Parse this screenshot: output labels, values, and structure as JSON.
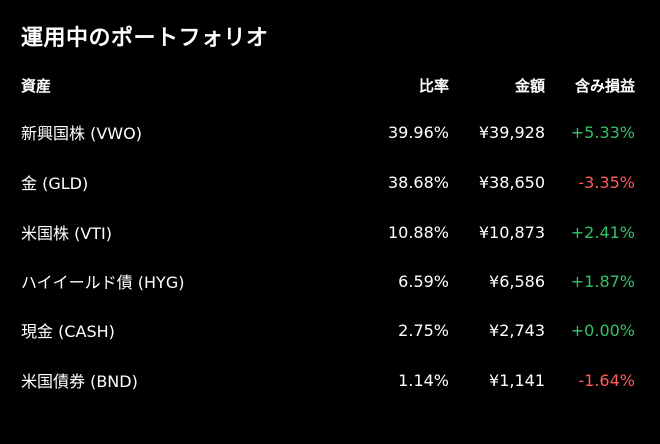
{
  "title": "運用中のポートフォリオ",
  "columns": {
    "asset": "資産",
    "ratio": "比率",
    "amount": "金額",
    "pnl": "含み損益"
  },
  "rows": [
    {
      "name": "新興国株 (VWO)",
      "ratio": "39.96%",
      "amount": "¥39,928",
      "pnl": "+5.33%",
      "pnl_sign": "positive"
    },
    {
      "name": "金 (GLD)",
      "ratio": "38.68%",
      "amount": "¥38,650",
      "pnl": "-3.35%",
      "pnl_sign": "negative"
    },
    {
      "name": "米国株 (VTI)",
      "ratio": "10.88%",
      "amount": "¥10,873",
      "pnl": "+2.41%",
      "pnl_sign": "positive"
    },
    {
      "name": "ハイイールド債 (HYG)",
      "ratio": "6.59%",
      "amount": "¥6,586",
      "pnl": "+1.87%",
      "pnl_sign": "positive"
    },
    {
      "name": "現金 (CASH)",
      "ratio": "2.75%",
      "amount": "¥2,743",
      "pnl": "+0.00%",
      "pnl_sign": "positive"
    },
    {
      "name": "米国債券 (BND)",
      "ratio": "1.14%",
      "amount": "¥1,141",
      "pnl": "-1.64%",
      "pnl_sign": "negative"
    }
  ],
  "colors": {
    "background": "#000000",
    "text": "#ffffff",
    "positive": "#33c16a",
    "negative": "#ff5a5a"
  }
}
